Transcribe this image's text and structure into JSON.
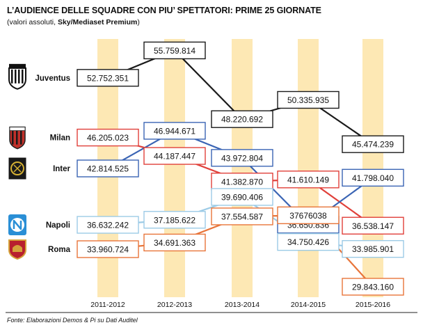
{
  "title": "L’AUDIENCE DELLE SQUADRE CON PIU’ SPETTATORI: PRIME 25 GIORNATE",
  "subtitle_plain": "(valori assoluti, ",
  "subtitle_bold": "Sky/Mediaset Premium",
  "subtitle_close": ")",
  "source": "Fonte: Elaborazioni Demos & Pi su Dati Auditel",
  "colors": {
    "column": "#fde8b4",
    "Juventus": "#1a1a1a",
    "Milan": "#e0403a",
    "Inter": "#3a64b4",
    "Napoli": "#9ccbe6",
    "Roma": "#e8753a"
  },
  "team_icons": {
    "Juventus": "juventus-crest-icon",
    "Milan": "milan-crest-icon",
    "Inter": "inter-crest-icon",
    "Napoli": "napoli-crest-icon",
    "Roma": "roma-crest-icon"
  },
  "chart_data": {
    "type": "line",
    "x": [
      "2011-2012",
      "2012-2013",
      "2013-2014",
      "2014-2015",
      "2015-2016"
    ],
    "series": [
      {
        "name": "Juventus",
        "values": [
          52752351,
          55759814,
          48220692,
          50335935,
          45474239
        ],
        "labels": [
          "52.752.351",
          "55.759.814",
          "48.220.692",
          "50.335.935",
          "45.474.239"
        ]
      },
      {
        "name": "Milan",
        "values": [
          46205023,
          44187447,
          41382870,
          41610149,
          36538147
        ],
        "labels": [
          "46.205.023",
          "44.187.447",
          "41.382.870",
          "41.610.149",
          "36.538.147"
        ]
      },
      {
        "name": "Inter",
        "values": [
          42814525,
          46944671,
          43972804,
          36650836,
          41798040
        ],
        "labels": [
          "42.814.525",
          "46.944.671",
          "43.972.804",
          "36.650.836",
          "41.798.040"
        ]
      },
      {
        "name": "Napoli",
        "values": [
          36632242,
          37185622,
          39690406,
          34750426,
          33985901
        ],
        "labels": [
          "36.632.242",
          "37.185.622",
          "39.690.406",
          "34.750.426",
          "33.985.901"
        ]
      },
      {
        "name": "Roma",
        "values": [
          33960724,
          34691363,
          37554587,
          37676038,
          29843160
        ],
        "labels": [
          "33.960.724",
          "34.691.363",
          "37.554.587",
          "37676038",
          "29.843.160"
        ]
      }
    ],
    "legend": "left",
    "grid": false
  }
}
